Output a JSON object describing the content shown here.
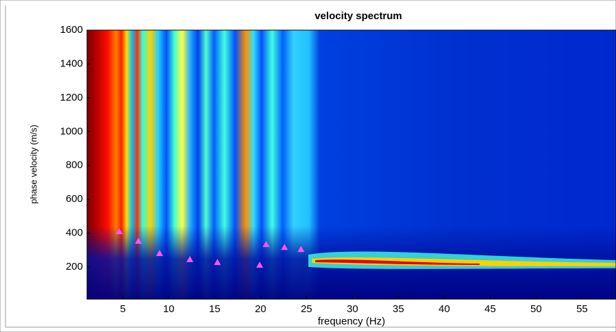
{
  "chart_data": {
    "type": "scatter",
    "title": "velocity spectrum",
    "x_label": "frequency (Hz)",
    "y_label": "phase velocity (m/s)",
    "series": [
      {
        "color": "#ff55ff",
        "x": [
          4.6,
          6.7,
          9.0,
          12.3,
          15.3,
          19.9,
          20.6,
          22.6,
          24.4
        ],
        "values": [
          410,
          354,
          281,
          245,
          228,
          212,
          334,
          317,
          305
        ]
      }
    ],
    "xlim": [
      1.1,
      58.7
    ],
    "ylim": [
      10,
      1600
    ],
    "xticks": [
      5,
      10,
      15,
      20,
      25,
      30,
      35,
      40,
      45,
      50,
      55
    ],
    "yticks": [
      200,
      400,
      600,
      800,
      1000,
      1200,
      1400,
      1600
    ]
  }
}
